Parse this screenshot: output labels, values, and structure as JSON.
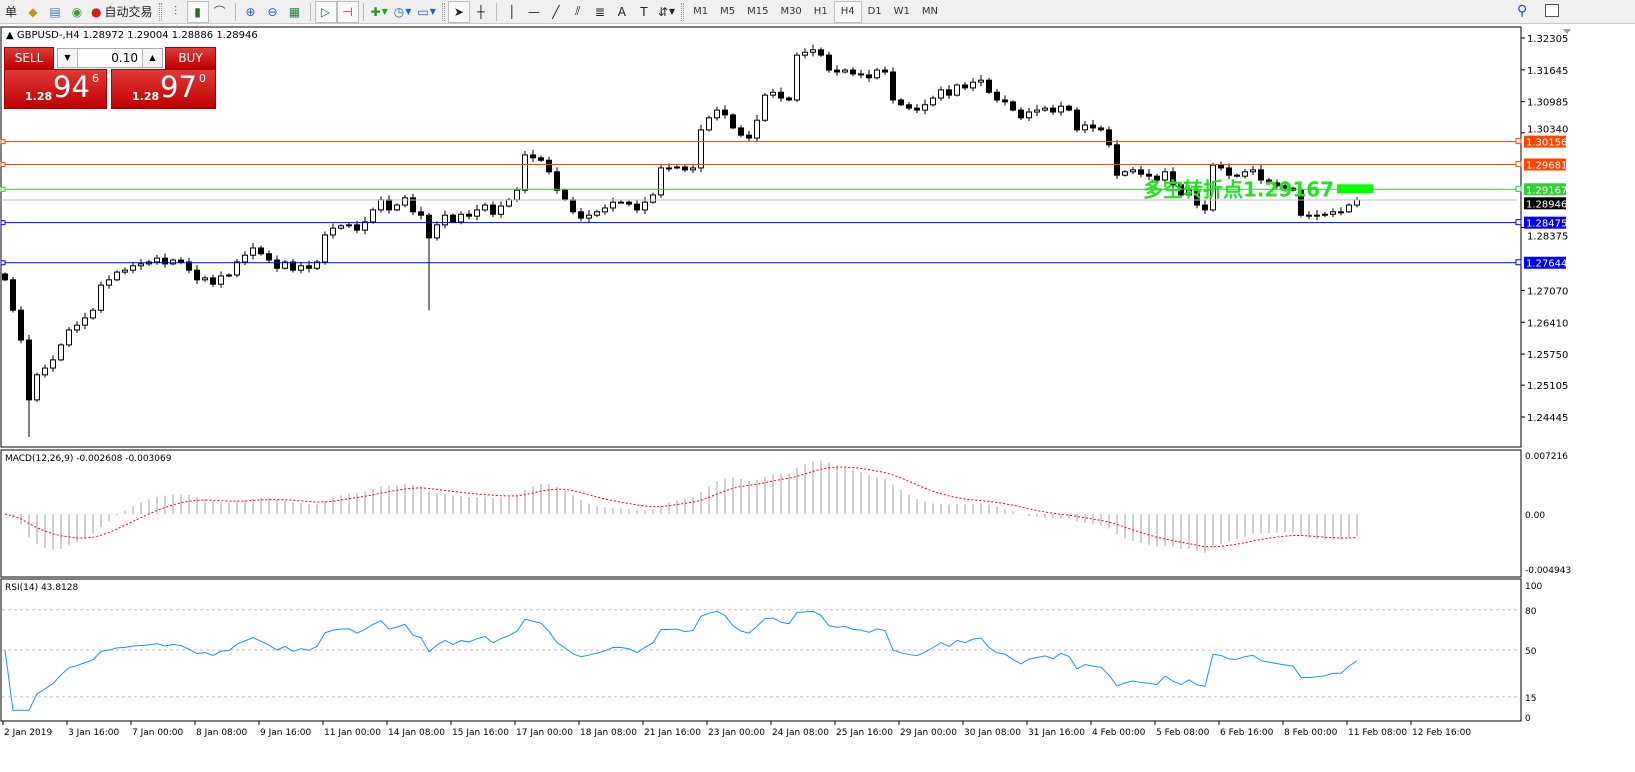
{
  "toolbar": {
    "menu_fragment": "单",
    "autotrade_label": "自动交易",
    "timeframes": [
      "M1",
      "M5",
      "M15",
      "M30",
      "H1",
      "H4",
      "D1",
      "W1",
      "MN"
    ],
    "active_timeframe": "H4",
    "icons": [
      "market-watch-icon",
      "navigator-icon",
      "signals-icon",
      "autotrading-icon",
      "bar-chart-icon",
      "candlestick-icon",
      "line-chart-icon",
      "zoom-in-icon",
      "zoom-out-icon",
      "tile-windows-icon",
      "autoscroll-icon",
      "chart-shift-icon",
      "indicators-icon",
      "periods-clock-icon",
      "templates-icon",
      "cursor-icon",
      "crosshair-icon",
      "vertical-line-icon",
      "horizontal-line-icon",
      "trendline-icon",
      "equidistant-channel-icon",
      "fibonacci-icon",
      "text-icon",
      "text-label-icon",
      "arrows-icon"
    ]
  },
  "symbol_info": "GBPUSD-,H4  1.28972 1.29004 1.28886 1.28946",
  "one_click": {
    "sell_label": "SELL",
    "buy_label": "BUY",
    "lot": "0.10",
    "sell_small": "1.28",
    "sell_big": "94",
    "sell_sup": "6",
    "buy_small": "1.28",
    "buy_big": "97",
    "buy_sup": "0"
  },
  "price_axis": [
    "1.32305",
    "1.31645",
    "1.30985",
    "1.30340",
    "1.28375",
    "1.27070",
    "1.26410",
    "1.25750",
    "1.25105",
    "1.24445"
  ],
  "price_range": [
    1.24445,
    1.32305
  ],
  "levels": [
    {
      "price": "1.30156",
      "color": "#ff4500"
    },
    {
      "price": "1.29681",
      "color": "#ff4500"
    },
    {
      "price": "1.29167",
      "color": "#32cd32"
    },
    {
      "price": "1.28946",
      "color": "#000000",
      "line": "#c0c0c0"
    },
    {
      "price": "1.28475",
      "color": "#0000ff"
    },
    {
      "price": "1.27644",
      "color": "#0000ff"
    }
  ],
  "annotation": {
    "text": "多空转折点1.29167",
    "color": "#22e022"
  },
  "candles": {
    "closes": [
      1.2729,
      1.2666,
      1.2604,
      1.248,
      1.2532,
      1.2546,
      1.2563,
      1.2594,
      1.2625,
      1.2635,
      1.265,
      1.2666,
      1.2718,
      1.2729,
      1.2745,
      1.2749,
      1.2758,
      1.2762,
      1.2766,
      1.2774,
      1.2762,
      1.277,
      1.2766,
      1.2749,
      1.2729,
      1.2733,
      1.272,
      1.2737,
      1.2739,
      1.2766,
      1.278,
      1.2795,
      1.2783,
      1.277,
      1.2753,
      1.2766,
      1.2749,
      1.2758,
      1.2753,
      1.2766,
      1.2822,
      1.2836,
      1.2841,
      1.2843,
      1.2832,
      1.2849,
      1.2874,
      1.2895,
      1.2874,
      1.2884,
      1.2899,
      1.287,
      1.2863,
      1.2816,
      1.2843,
      1.2863,
      1.2849,
      1.2865,
      1.2861,
      1.2874,
      1.2884,
      1.2865,
      1.2882,
      1.2895,
      1.2915,
      1.2988,
      1.2982,
      1.2977,
      1.2953,
      1.2915,
      1.2895,
      1.287,
      1.2857,
      1.2863,
      1.287,
      1.2878,
      1.289,
      1.289,
      1.2886,
      1.2874,
      1.289,
      1.2905,
      1.2961,
      1.2961,
      1.2963,
      1.2957,
      1.2961,
      1.304,
      1.3065,
      1.3081,
      1.3071,
      1.3044,
      1.3029,
      1.3023,
      1.306,
      1.3112,
      1.3118,
      1.3106,
      1.3102,
      1.3195,
      1.3201,
      1.3206,
      1.3195,
      1.3164,
      1.316,
      1.3164,
      1.3156,
      1.3154,
      1.3148,
      1.3164,
      1.316,
      1.3102,
      1.3092,
      1.3085,
      1.3081,
      1.3092,
      1.3106,
      1.3123,
      1.3112,
      1.3133,
      1.3127,
      1.3139,
      1.3143,
      1.3118,
      1.3102,
      1.3098,
      1.3081,
      1.3065,
      1.3077,
      1.3081,
      1.3085,
      1.3077,
      1.3089,
      1.3081,
      1.304,
      1.305,
      1.3044,
      1.304,
      1.3009,
      1.2946,
      1.2953,
      1.2957,
      1.2948,
      1.2944,
      1.2936,
      1.2953,
      1.2926,
      1.2905,
      1.2915,
      1.2884,
      1.2874,
      1.2967,
      1.2961,
      1.2946,
      1.2944,
      1.2953,
      1.2957,
      1.2936,
      1.293,
      1.2924,
      1.2919,
      1.2915,
      1.2863,
      1.2861,
      1.2863,
      1.2865,
      1.287,
      1.287,
      1.2884,
      1.28946
    ],
    "long_wicks": [
      {
        "bar": 3,
        "low": 1.2403
      },
      {
        "bar": 53,
        "low": 1.2666
      }
    ]
  },
  "macd": {
    "label": "MACD(12,26,9) -0.002608 -0.003069",
    "axis": [
      "0.007216",
      "0.00",
      "-0.004943"
    ],
    "hist_color": "#c0c0c0",
    "signal_color": "#ff0000"
  },
  "rsi": {
    "label": "RSI(14) 43.8128",
    "axis": [
      "100",
      "80",
      "50",
      "15",
      "0"
    ],
    "color": "#1e90ff"
  },
  "time_axis": [
    "2 Jan 2019",
    "3 Jan 16:00",
    "7 Jan 00:00",
    "8 Jan 08:00",
    "9 Jan 16:00",
    "11 Jan 00:00",
    "14 Jan 08:00",
    "15 Jan 16:00",
    "17 Jan 00:00",
    "18 Jan 08:00",
    "21 Jan 16:00",
    "23 Jan 00:00",
    "24 Jan 08:00",
    "25 Jan 16:00",
    "29 Jan 00:00",
    "30 Jan 08:00",
    "31 Jan 16:00",
    "4 Feb 00:00",
    "5 Feb 08:00",
    "6 Feb 16:00",
    "8 Feb 00:00",
    "11 Feb 08:00",
    "12 Feb 16:00"
  ]
}
